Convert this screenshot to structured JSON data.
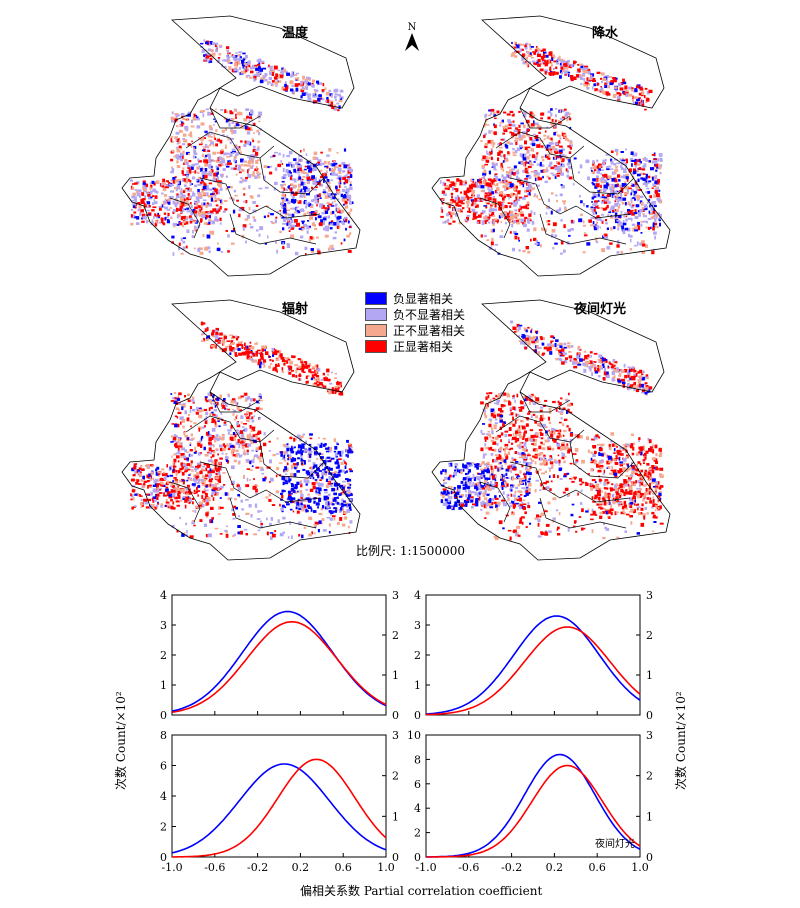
{
  "maps": [
    {
      "id": "temp",
      "title": "温度"
    },
    {
      "id": "precip",
      "title": "降水"
    },
    {
      "id": "rad",
      "title": "辐射"
    },
    {
      "id": "light",
      "title": "夜间灯光"
    }
  ],
  "north_label": "N",
  "legend": [
    {
      "label": "负显著相关",
      "color": "#0000ff"
    },
    {
      "label": "负不显著相关",
      "color": "#b3a6f2"
    },
    {
      "label": "正不显著相关",
      "color": "#f6a88f"
    },
    {
      "label": "正显著相关",
      "color": "#ff0000"
    }
  ],
  "scale_text": "比例尺: 1:1500000",
  "y_label": "次数 Count/×10²",
  "x_label": "偏相关系数 Partial correlation coefficient",
  "x_ticks": [
    "-1.0",
    "-0.6",
    "-0.2",
    "0.2",
    "0.6",
    "1.0"
  ],
  "series_colors": {
    "blue": "#0000ff",
    "red": "#ff0000"
  },
  "chart_data": [
    {
      "type": "line",
      "left_ylim": [
        0,
        4
      ],
      "left_ticks": [
        "0",
        "1",
        "2",
        "3",
        "4"
      ],
      "right_ylim": [
        0,
        3
      ],
      "right_ticks": [
        "0",
        "1",
        "2",
        "3"
      ],
      "series": [
        {
          "color": "blue",
          "axis": "left",
          "peak_x": 0.08,
          "peak_y": 3.45,
          "sd": 0.42
        },
        {
          "color": "red",
          "axis": "right",
          "peak_x": 0.12,
          "peak_y": 2.33,
          "sd": 0.42
        }
      ]
    },
    {
      "type": "line",
      "left_ylim": [
        0,
        4
      ],
      "left_ticks": [
        "0",
        "1",
        "2",
        "3",
        "4"
      ],
      "right_ylim": [
        0,
        3
      ],
      "right_ticks": [
        "0",
        "1",
        "2",
        "3"
      ],
      "series": [
        {
          "color": "blue",
          "axis": "left",
          "peak_x": 0.22,
          "peak_y": 3.3,
          "sd": 0.4
        },
        {
          "color": "red",
          "axis": "right",
          "peak_x": 0.32,
          "peak_y": 2.2,
          "sd": 0.4
        }
      ]
    },
    {
      "type": "line",
      "left_ylim": [
        0,
        8
      ],
      "left_ticks": [
        "0",
        "2",
        "4",
        "6",
        "8"
      ],
      "right_ylim": [
        0,
        3
      ],
      "right_ticks": [
        "0",
        "1",
        "2",
        "3"
      ],
      "series": [
        {
          "color": "blue",
          "axis": "left",
          "peak_x": 0.05,
          "peak_y": 6.1,
          "sd": 0.42
        },
        {
          "color": "red",
          "axis": "right",
          "peak_x": 0.35,
          "peak_y": 2.4,
          "sd": 0.36
        }
      ]
    },
    {
      "type": "line",
      "left_ylim": [
        0,
        10
      ],
      "left_ticks": [
        "0",
        "2",
        "4",
        "6",
        "8",
        "10"
      ],
      "right_ylim": [
        0,
        3
      ],
      "right_ticks": [
        "0",
        "1",
        "2",
        "3"
      ],
      "annotation": "夜间灯光",
      "series": [
        {
          "color": "blue",
          "axis": "left",
          "peak_x": 0.25,
          "peak_y": 8.4,
          "sd": 0.33
        },
        {
          "color": "red",
          "axis": "right",
          "peak_x": 0.32,
          "peak_y": 2.25,
          "sd": 0.33
        }
      ]
    }
  ]
}
